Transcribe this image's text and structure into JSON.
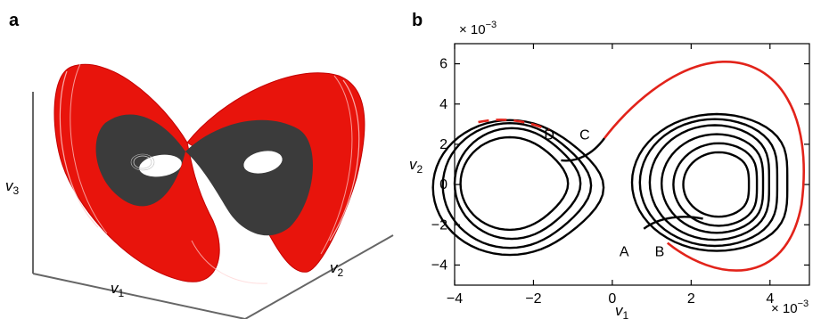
{
  "panels": {
    "a": {
      "letter": "a",
      "axis_labels": {
        "x": "v",
        "x_sub": "1",
        "y": "v",
        "y_sub": "2",
        "z": "v",
        "z_sub": "3"
      }
    },
    "b": {
      "letter": "b",
      "x_label": "v",
      "x_label_sub": "1",
      "y_label": "v",
      "y_label_sub": "2",
      "x_multiplier": "× 10",
      "x_multiplier_exp": "−3",
      "y_multiplier": "× 10",
      "y_multiplier_exp": "−3",
      "point_labels": [
        "A",
        "B",
        "C",
        "D"
      ]
    }
  },
  "colors": {
    "black_path": "#000000",
    "red_path": "#e2231a",
    "attractor_red": "#e8140c",
    "attractor_dark": "#3b3b3b"
  },
  "chart_data": [
    {
      "type": "3d-trajectory",
      "panel": "a",
      "series": []
    },
    {
      "type": "line",
      "panel": "b",
      "xlim": [
        -4,
        5
      ],
      "ylim": [
        -5,
        7
      ],
      "xticks": [
        -4,
        -2,
        0,
        2,
        4
      ],
      "yticks": [
        -4,
        -2,
        0,
        2,
        4,
        6
      ],
      "xticklabels": [
        "−4",
        "−2",
        "0",
        "2",
        "4"
      ],
      "yticklabels": [
        "−4",
        "−2",
        "0",
        "2",
        "4",
        "6"
      ],
      "annotations": [
        {
          "text": "A",
          "x": 0.3,
          "y": -3.3
        },
        {
          "text": "B",
          "x": 1.2,
          "y": -3.3
        },
        {
          "text": "C",
          "x": -0.7,
          "y": 2.5
        },
        {
          "text": "D",
          "x": -1.6,
          "y": 2.5
        }
      ]
    }
  ]
}
